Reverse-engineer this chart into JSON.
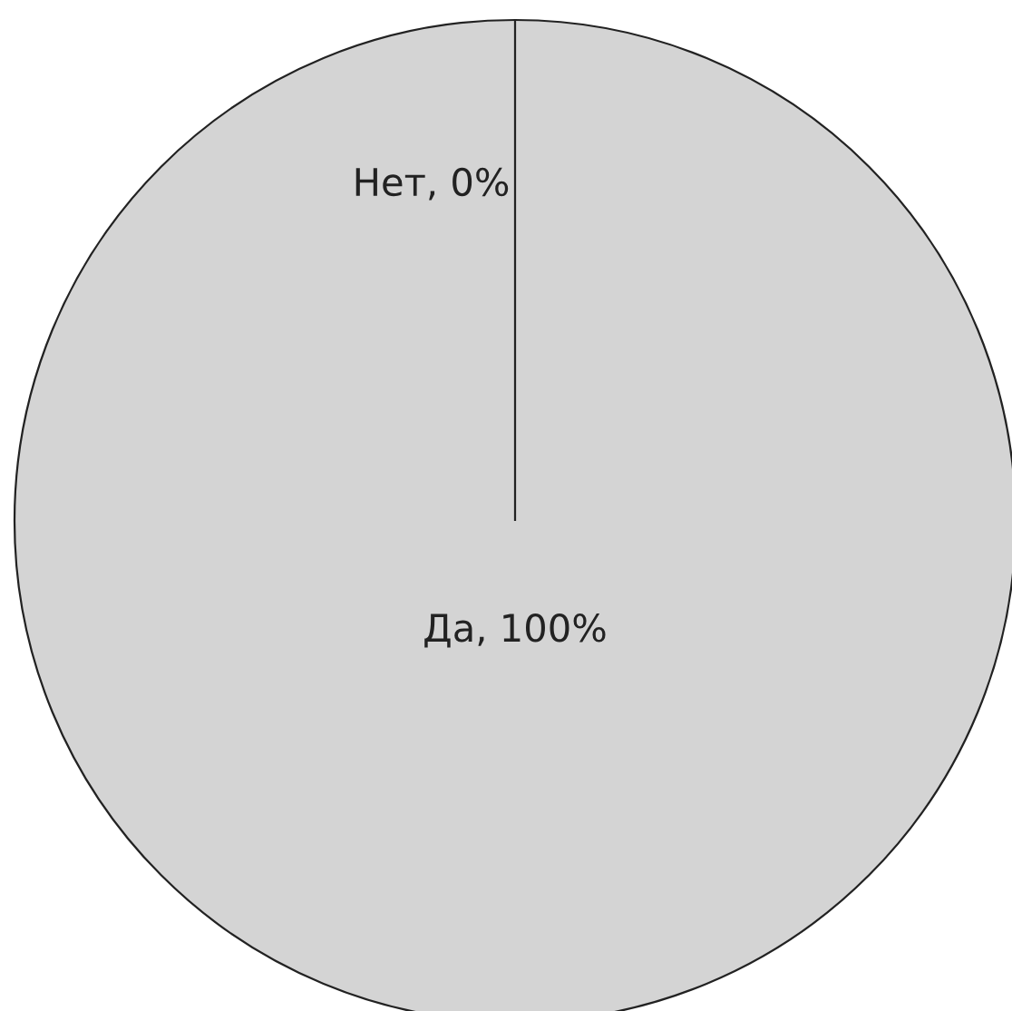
{
  "chart_data": {
    "type": "pie",
    "categories": [
      "Да, 100%",
      "Нет, 0%"
    ],
    "values": [
      100,
      0
    ],
    "colors": [
      "#d4d4d4",
      "#d4d4d4"
    ]
  }
}
